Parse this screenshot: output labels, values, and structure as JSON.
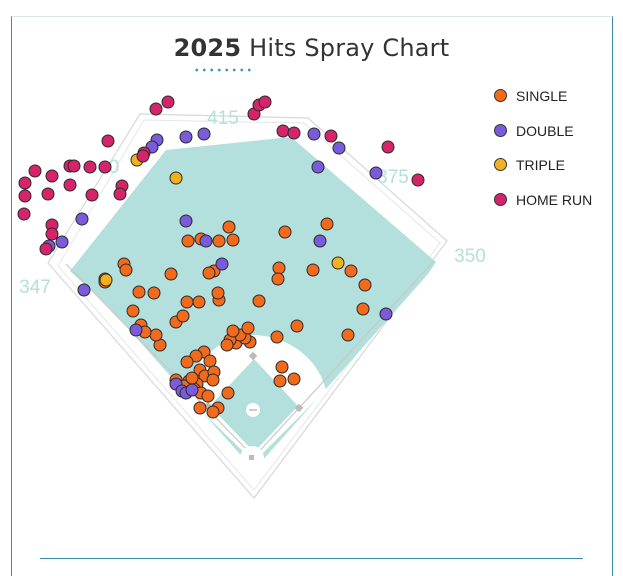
{
  "title": {
    "year": "2025",
    "text": "Hits Spray Chart"
  },
  "colors": {
    "field": "#b3dfdc",
    "single": "#f26b1d",
    "double": "#7a5bdc",
    "triple": "#f2b21d",
    "home_run": "#d6246b",
    "distance": "#b3dfdc"
  },
  "legend": [
    {
      "key": "single",
      "label": "SINGLE",
      "icon": "orange-dot"
    },
    {
      "key": "double",
      "label": "DOUBLE",
      "icon": "purple-dot"
    },
    {
      "key": "triple",
      "label": "TRIPLE",
      "icon": "yellow-dot"
    },
    {
      "key": "home_run",
      "label": "HOME RUN",
      "icon": "magenta-dot"
    }
  ],
  "chart_data": {
    "type": "scatter",
    "title": "2025 Hits Spray Chart",
    "distance_markers": [
      {
        "label": "415",
        "location": "center field"
      },
      {
        "label": "375",
        "location": "right-center"
      },
      {
        "label": "350",
        "location": "right field line"
      },
      {
        "label": "347",
        "location": "left field line"
      },
      {
        "label": "0",
        "location": "left-center (partially hidden)"
      }
    ],
    "series": [
      {
        "name": "SINGLE",
        "key": "single",
        "points": [
          [
            250,
            342
          ],
          [
            236,
            343
          ],
          [
            245,
            338
          ],
          [
            240,
            335
          ],
          [
            230,
            340
          ],
          [
            204,
            352
          ],
          [
            196,
            356
          ],
          [
            210,
            361
          ],
          [
            200,
            370
          ],
          [
            205,
            376
          ],
          [
            214,
            372
          ],
          [
            189,
            381
          ],
          [
            176,
            380
          ],
          [
            184,
            386
          ],
          [
            197,
            384
          ],
          [
            194,
            389
          ],
          [
            201,
            393
          ],
          [
            208,
            396
          ],
          [
            218,
            408
          ],
          [
            213,
            412
          ],
          [
            200,
            408
          ],
          [
            228,
            393
          ],
          [
            213,
            380
          ],
          [
            187,
            362
          ],
          [
            192,
            378
          ],
          [
            280,
            381
          ],
          [
            294,
            379
          ],
          [
            282,
            367
          ],
          [
            277,
            337
          ],
          [
            297,
            326
          ],
          [
            259,
            301
          ],
          [
            233,
            331
          ],
          [
            248,
            328
          ],
          [
            227,
            345
          ],
          [
            160,
            345
          ],
          [
            156,
            335
          ],
          [
            141,
            325
          ],
          [
            133,
            311
          ],
          [
            145,
            332
          ],
          [
            176,
            322
          ],
          [
            183,
            316
          ],
          [
            187,
            302
          ],
          [
            199,
            302
          ],
          [
            219,
            300
          ],
          [
            218,
            293
          ],
          [
            214,
            271
          ],
          [
            209,
            273
          ],
          [
            171,
            274
          ],
          [
            124,
            264
          ],
          [
            126,
            270
          ],
          [
            139,
            292
          ],
          [
            154,
            293
          ],
          [
            188,
            241
          ],
          [
            201,
            239
          ],
          [
            219,
            241
          ],
          [
            233,
            240
          ],
          [
            229,
            227
          ],
          [
            285,
            232
          ],
          [
            327,
            224
          ],
          [
            279,
            268
          ],
          [
            278,
            279
          ],
          [
            313,
            270
          ],
          [
            351,
            271
          ],
          [
            365,
            285
          ],
          [
            363,
            309
          ],
          [
            348,
            335
          ],
          [
            105,
            279
          ],
          [
            105,
            282
          ]
        ]
      },
      {
        "name": "DOUBLE",
        "key": "double",
        "points": [
          [
            186,
            221
          ],
          [
            206,
            241
          ],
          [
            222,
            264
          ],
          [
            320,
            241
          ],
          [
            386,
            314
          ],
          [
            84,
            290
          ],
          [
            62,
            242
          ],
          [
            82,
            219
          ],
          [
            49,
            246
          ],
          [
            186,
            137
          ],
          [
            204,
            134
          ],
          [
            157,
            140
          ],
          [
            152,
            147
          ],
          [
            314,
            134
          ],
          [
            339,
            148
          ],
          [
            318,
            167
          ],
          [
            376,
            173
          ],
          [
            136,
            330
          ],
          [
            176,
            384
          ],
          [
            182,
            391
          ],
          [
            186,
            393
          ],
          [
            192,
            390
          ]
        ]
      },
      {
        "name": "TRIPLE",
        "key": "triple",
        "points": [
          [
            176,
            178
          ],
          [
            137,
            160
          ],
          [
            338,
            263
          ],
          [
            106,
            280
          ]
        ]
      },
      {
        "name": "HOME RUN",
        "key": "home_run",
        "points": [
          [
            25,
            183
          ],
          [
            25,
            196
          ],
          [
            24,
            214
          ],
          [
            35,
            171
          ],
          [
            52,
            176
          ],
          [
            48,
            194
          ],
          [
            70,
            166
          ],
          [
            74,
            166
          ],
          [
            90,
            167
          ],
          [
            105,
            167
          ],
          [
            70,
            185
          ],
          [
            92,
            195
          ],
          [
            108,
            141
          ],
          [
            122,
            186
          ],
          [
            120,
            194
          ],
          [
            52,
            225
          ],
          [
            52,
            234
          ],
          [
            46,
            249
          ],
          [
            144,
            153
          ],
          [
            143,
            156
          ],
          [
            156,
            109
          ],
          [
            168,
            102
          ],
          [
            254,
            114
          ],
          [
            259,
            105
          ],
          [
            265,
            102
          ],
          [
            283,
            131
          ],
          [
            294,
            133
          ],
          [
            331,
            136
          ],
          [
            388,
            147
          ],
          [
            418,
            180
          ]
        ]
      }
    ]
  }
}
